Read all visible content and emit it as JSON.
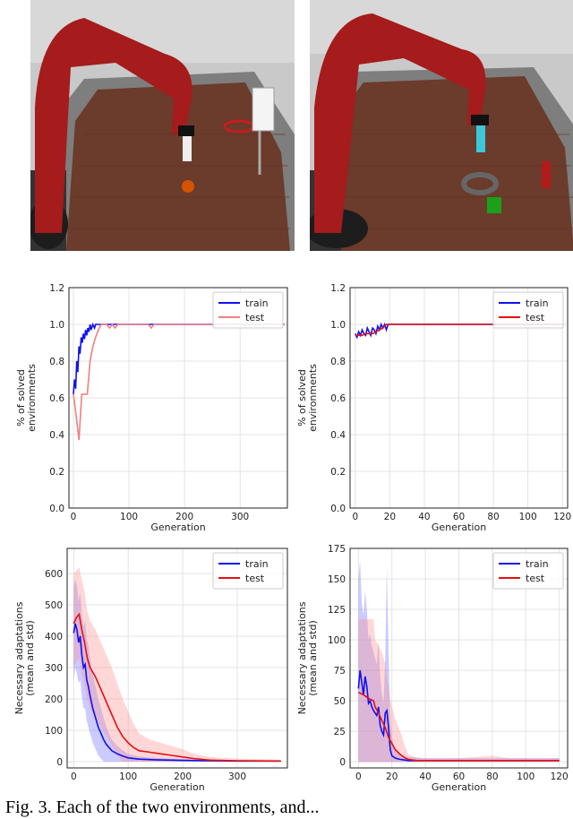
{
  "caption": "Fig. 3. Each of the two environments, and...",
  "scenes": [
    {
      "name": "basketball-scene",
      "robot_color": "#a61b1b",
      "table_color": "#6b3b2c"
    },
    {
      "name": "ring-scene",
      "robot_color": "#a61b1b",
      "table_color": "#6b3b2c"
    }
  ],
  "chart_data": [
    {
      "type": "line",
      "title": "",
      "xlabel": "Generation",
      "ylabel": "% of solved\nenvironments",
      "xlim": [
        -8,
        385
      ],
      "ylim": [
        0,
        1.2
      ],
      "xticks": [
        0,
        100,
        200,
        300
      ],
      "yticks": [
        0.0,
        0.2,
        0.4,
        0.6,
        0.8,
        1.0,
        1.2
      ],
      "ytick_decimals": 1,
      "grid": true,
      "legend": "top-right",
      "series": [
        {
          "name": "train",
          "color": "#1010ee",
          "x": [
            0,
            2,
            4,
            6,
            8,
            10,
            12,
            14,
            16,
            18,
            20,
            22,
            24,
            26,
            28,
            30,
            32,
            35,
            38,
            40,
            45,
            50,
            60,
            70,
            80,
            100,
            140,
            200,
            300,
            380
          ],
          "y": [
            0.62,
            0.7,
            0.65,
            0.8,
            0.74,
            0.88,
            0.84,
            0.93,
            0.9,
            0.95,
            0.92,
            0.97,
            0.94,
            0.98,
            0.96,
            1.0,
            0.97,
            1.0,
            0.98,
            1.0,
            1.0,
            1.0,
            1.0,
            1.0,
            1.0,
            1.0,
            1.0,
            1.0,
            1.0,
            1.0
          ]
        },
        {
          "name": "test",
          "color": "#f08080",
          "x": [
            0,
            5,
            10,
            15,
            20,
            25,
            30,
            35,
            40,
            45,
            50,
            55,
            60,
            65,
            70,
            75,
            80,
            100,
            135,
            140,
            145,
            200,
            300,
            380
          ],
          "y": [
            0.62,
            0.5,
            0.37,
            0.62,
            0.62,
            0.62,
            0.8,
            0.88,
            0.93,
            0.97,
            1.0,
            1.0,
            1.0,
            0.98,
            1.0,
            0.98,
            1.0,
            1.0,
            1.0,
            0.98,
            1.0,
            1.0,
            1.0,
            1.0
          ]
        }
      ]
    },
    {
      "type": "line",
      "title": "",
      "xlabel": "Generation",
      "ylabel": "% of solved\nenvironments",
      "xlim": [
        -3,
        123
      ],
      "ylim": [
        0,
        1.2
      ],
      "xticks": [
        0,
        20,
        40,
        60,
        80,
        100,
        120
      ],
      "yticks": [
        0.0,
        0.2,
        0.4,
        0.6,
        0.8,
        1.0,
        1.2
      ],
      "ytick_decimals": 1,
      "grid": true,
      "legend": "top-right",
      "series": [
        {
          "name": "train",
          "color": "#1010ee",
          "x": [
            0,
            1,
            2,
            3,
            4,
            5,
            6,
            7,
            8,
            9,
            10,
            11,
            12,
            13,
            14,
            15,
            16,
            17,
            18,
            19,
            20,
            40,
            60,
            80,
            100,
            120
          ],
          "y": [
            0.95,
            0.93,
            0.96,
            0.94,
            0.97,
            0.95,
            0.94,
            0.98,
            0.96,
            0.94,
            0.98,
            0.97,
            0.95,
            0.99,
            0.97,
            1.0,
            0.98,
            1.0,
            0.97,
            1.0,
            1.0,
            1.0,
            1.0,
            1.0,
            1.0,
            1.0
          ]
        },
        {
          "name": "test",
          "color": "#e61010",
          "x": [
            0,
            2,
            4,
            6,
            8,
            10,
            12,
            14,
            16,
            18,
            20,
            40,
            60,
            80,
            100,
            120
          ],
          "y": [
            0.94,
            0.94,
            0.94,
            0.95,
            0.95,
            0.95,
            0.96,
            0.97,
            0.98,
            1.0,
            1.0,
            1.0,
            1.0,
            1.0,
            1.0,
            1.0
          ]
        }
      ]
    },
    {
      "type": "line",
      "title": "",
      "xlabel": "Generation",
      "ylabel": "Necessary adaptations\n(mean and std)",
      "xlim": [
        -12,
        392
      ],
      "ylim": [
        -20,
        680
      ],
      "xticks": [
        0,
        100,
        200,
        300
      ],
      "yticks": [
        0,
        100,
        200,
        300,
        400,
        500,
        600
      ],
      "ytick_decimals": 0,
      "grid": true,
      "legend": "top-right",
      "series": [
        {
          "name": "train",
          "color": "#1010ee",
          "band_color": "#6a6aff",
          "x": [
            0,
            3,
            6,
            9,
            12,
            15,
            18,
            21,
            24,
            27,
            30,
            35,
            40,
            45,
            50,
            55,
            60,
            65,
            70,
            80,
            90,
            100,
            120,
            150,
            200,
            250,
            300,
            380
          ],
          "y": [
            410,
            440,
            420,
            380,
            400,
            340,
            300,
            310,
            260,
            240,
            210,
            170,
            140,
            110,
            90,
            70,
            55,
            45,
            35,
            25,
            18,
            12,
            8,
            6,
            4,
            3,
            2,
            2
          ],
          "lower": [
            260,
            300,
            280,
            250,
            260,
            210,
            170,
            170,
            130,
            110,
            90,
            60,
            40,
            20,
            10,
            0,
            0,
            0,
            0,
            0,
            0,
            0,
            0,
            0,
            0,
            0,
            0,
            0
          ],
          "upper": [
            560,
            580,
            560,
            510,
            540,
            470,
            430,
            450,
            390,
            370,
            330,
            280,
            240,
            200,
            170,
            140,
            110,
            90,
            70,
            50,
            36,
            24,
            16,
            12,
            8,
            6,
            4,
            4
          ]
        },
        {
          "name": "test",
          "color": "#e61010",
          "band_color": "#ff8c8c",
          "x": [
            0,
            5,
            10,
            15,
            20,
            25,
            30,
            40,
            50,
            60,
            70,
            80,
            90,
            100,
            110,
            120,
            140,
            160,
            180,
            200,
            220,
            250,
            300,
            380
          ],
          "y": [
            440,
            460,
            470,
            420,
            380,
            330,
            300,
            270,
            230,
            190,
            150,
            110,
            80,
            60,
            45,
            35,
            30,
            25,
            20,
            15,
            10,
            5,
            3,
            2
          ],
          "lower": [
            300,
            320,
            330,
            280,
            240,
            200,
            170,
            140,
            110,
            80,
            50,
            20,
            0,
            0,
            0,
            0,
            0,
            0,
            0,
            0,
            0,
            0,
            0,
            0
          ],
          "upper": [
            600,
            610,
            620,
            580,
            540,
            480,
            450,
            420,
            380,
            340,
            300,
            250,
            200,
            160,
            120,
            90,
            70,
            60,
            50,
            40,
            25,
            15,
            10,
            6
          ]
        }
      ]
    },
    {
      "type": "line",
      "title": "",
      "xlabel": "Generation",
      "ylabel": "Necessary adaptations\n(mean and std)",
      "xlim": [
        -5,
        125
      ],
      "ylim": [
        -5,
        175
      ],
      "xticks": [
        0,
        20,
        40,
        60,
        80,
        100,
        120
      ],
      "yticks": [
        0,
        25,
        50,
        75,
        100,
        125,
        150,
        175
      ],
      "ytick_decimals": 0,
      "grid": true,
      "legend": "top-right",
      "series": [
        {
          "name": "train",
          "color": "#1010ee",
          "band_color": "#6a6aff",
          "x": [
            0,
            1,
            2,
            3,
            4,
            5,
            6,
            7,
            8,
            9,
            10,
            11,
            12,
            13,
            14,
            15,
            16,
            17,
            18,
            19,
            20,
            22,
            25,
            30,
            40,
            60,
            80,
            100,
            120
          ],
          "y": [
            60,
            75,
            65,
            55,
            70,
            62,
            48,
            50,
            45,
            42,
            40,
            38,
            45,
            30,
            25,
            22,
            40,
            42,
            28,
            10,
            5,
            3,
            2,
            1,
            1,
            1,
            1,
            1,
            1
          ],
          "lower": [
            0,
            0,
            0,
            0,
            0,
            0,
            0,
            0,
            0,
            0,
            0,
            0,
            0,
            0,
            0,
            0,
            0,
            0,
            0,
            0,
            0,
            0,
            0,
            0,
            0,
            0,
            0,
            0,
            0
          ],
          "upper": [
            150,
            165,
            130,
            120,
            140,
            125,
            100,
            105,
            95,
            90,
            85,
            80,
            100,
            70,
            55,
            48,
            85,
            160,
            90,
            35,
            20,
            10,
            6,
            4,
            3,
            3,
            3,
            3,
            3
          ]
        },
        {
          "name": "test",
          "color": "#e61010",
          "band_color": "#ff8c8c",
          "x": [
            0,
            3,
            6,
            9,
            10,
            12,
            14,
            16,
            18,
            20,
            22,
            25,
            28,
            30,
            35,
            40,
            60,
            80,
            90,
            100,
            120
          ],
          "y": [
            57,
            55,
            52,
            50,
            45,
            40,
            34,
            28,
            20,
            15,
            10,
            6,
            3,
            2,
            1,
            1,
            1,
            1,
            1,
            1,
            1
          ],
          "lower": [
            0,
            0,
            0,
            0,
            0,
            0,
            0,
            0,
            0,
            0,
            0,
            0,
            0,
            0,
            0,
            0,
            0,
            0,
            0,
            0,
            0
          ],
          "upper": [
            117,
            117,
            117,
            117,
            100,
            95,
            90,
            80,
            60,
            45,
            35,
            25,
            12,
            6,
            3,
            3,
            3,
            5,
            3,
            3,
            3
          ]
        }
      ]
    }
  ]
}
